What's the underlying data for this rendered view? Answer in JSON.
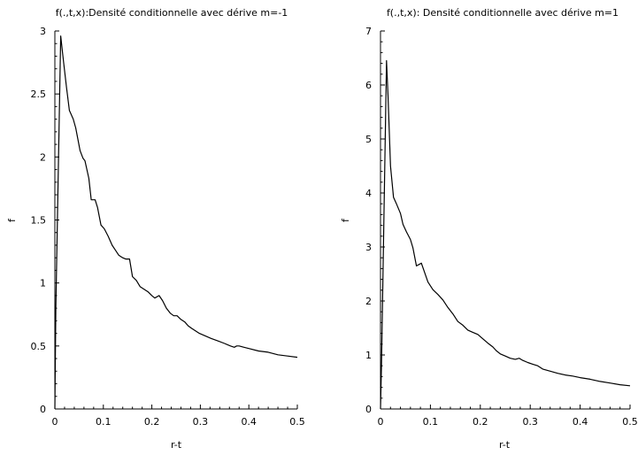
{
  "chart_data": [
    {
      "type": "line",
      "title": "f(.,t,x):Densité conditionnelle avec dérive m=-1",
      "xlabel": "r-t",
      "ylabel": "f",
      "xlim": [
        0,
        0.5
      ],
      "ylim": [
        0,
        3
      ],
      "xticks": [
        "0",
        "0.1",
        "0.2",
        "0.3",
        "0.4",
        "0.5"
      ],
      "yticks": [
        "0",
        "0.5",
        "1",
        "1.5",
        "2",
        "2.5",
        "3"
      ],
      "grid": false,
      "line_color": "#000000",
      "series": [
        {
          "x": [
            0.0,
            0.002,
            0.012,
            0.018,
            0.024,
            0.03,
            0.038,
            0.043,
            0.052,
            0.058,
            0.062,
            0.07,
            0.075,
            0.083,
            0.088,
            0.095,
            0.102,
            0.11,
            0.118,
            0.125,
            0.132,
            0.14,
            0.146,
            0.154,
            0.16,
            0.168,
            0.176,
            0.184,
            0.192,
            0.2,
            0.206,
            0.215,
            0.222,
            0.23,
            0.238,
            0.245,
            0.252,
            0.26,
            0.268,
            0.275,
            0.282,
            0.29,
            0.298,
            0.31,
            0.322,
            0.336,
            0.35,
            0.362,
            0.37,
            0.375,
            0.38,
            0.39,
            0.4,
            0.42,
            0.44,
            0.46,
            0.48,
            0.5
          ],
          "y": [
            0.0,
            0.8,
            2.96,
            2.75,
            2.55,
            2.37,
            2.3,
            2.23,
            2.05,
            1.99,
            1.97,
            1.83,
            1.66,
            1.66,
            1.6,
            1.46,
            1.43,
            1.37,
            1.3,
            1.26,
            1.22,
            1.2,
            1.19,
            1.19,
            1.05,
            1.02,
            0.97,
            0.95,
            0.93,
            0.9,
            0.88,
            0.9,
            0.86,
            0.8,
            0.76,
            0.74,
            0.74,
            0.71,
            0.69,
            0.66,
            0.64,
            0.62,
            0.6,
            0.58,
            0.56,
            0.54,
            0.52,
            0.5,
            0.49,
            0.5,
            0.5,
            0.49,
            0.48,
            0.46,
            0.45,
            0.43,
            0.42,
            0.41
          ]
        }
      ]
    },
    {
      "type": "line",
      "title": "f(.,t,x): Densité conditionnelle avec dérive m=1",
      "xlabel": "r-t",
      "ylabel": "f",
      "xlim": [
        0,
        0.5
      ],
      "ylim": [
        0,
        7
      ],
      "xticks": [
        "0",
        "0.1",
        "0.2",
        "0.3",
        "0.4",
        "0.5"
      ],
      "yticks": [
        "0",
        "1",
        "2",
        "3",
        "4",
        "5",
        "6",
        "7"
      ],
      "grid": false,
      "line_color": "#000000",
      "series": [
        {
          "x": [
            0.0,
            0.002,
            0.012,
            0.015,
            0.02,
            0.026,
            0.032,
            0.04,
            0.045,
            0.052,
            0.06,
            0.065,
            0.072,
            0.082,
            0.085,
            0.095,
            0.105,
            0.115,
            0.125,
            0.135,
            0.145,
            0.155,
            0.165,
            0.175,
            0.185,
            0.195,
            0.205,
            0.215,
            0.225,
            0.232,
            0.24,
            0.25,
            0.26,
            0.27,
            0.278,
            0.285,
            0.295,
            0.305,
            0.315,
            0.325,
            0.34,
            0.355,
            0.37,
            0.385,
            0.4,
            0.42,
            0.44,
            0.46,
            0.48,
            0.5
          ],
          "y": [
            0.0,
            0.8,
            6.45,
            5.8,
            4.5,
            3.92,
            3.8,
            3.62,
            3.42,
            3.28,
            3.14,
            2.98,
            2.65,
            2.7,
            2.62,
            2.35,
            2.21,
            2.12,
            2.02,
            1.88,
            1.76,
            1.62,
            1.55,
            1.46,
            1.42,
            1.38,
            1.3,
            1.22,
            1.15,
            1.08,
            1.02,
            0.98,
            0.94,
            0.92,
            0.94,
            0.9,
            0.86,
            0.83,
            0.8,
            0.74,
            0.7,
            0.66,
            0.63,
            0.61,
            0.58,
            0.55,
            0.51,
            0.48,
            0.45,
            0.43
          ]
        }
      ]
    }
  ]
}
